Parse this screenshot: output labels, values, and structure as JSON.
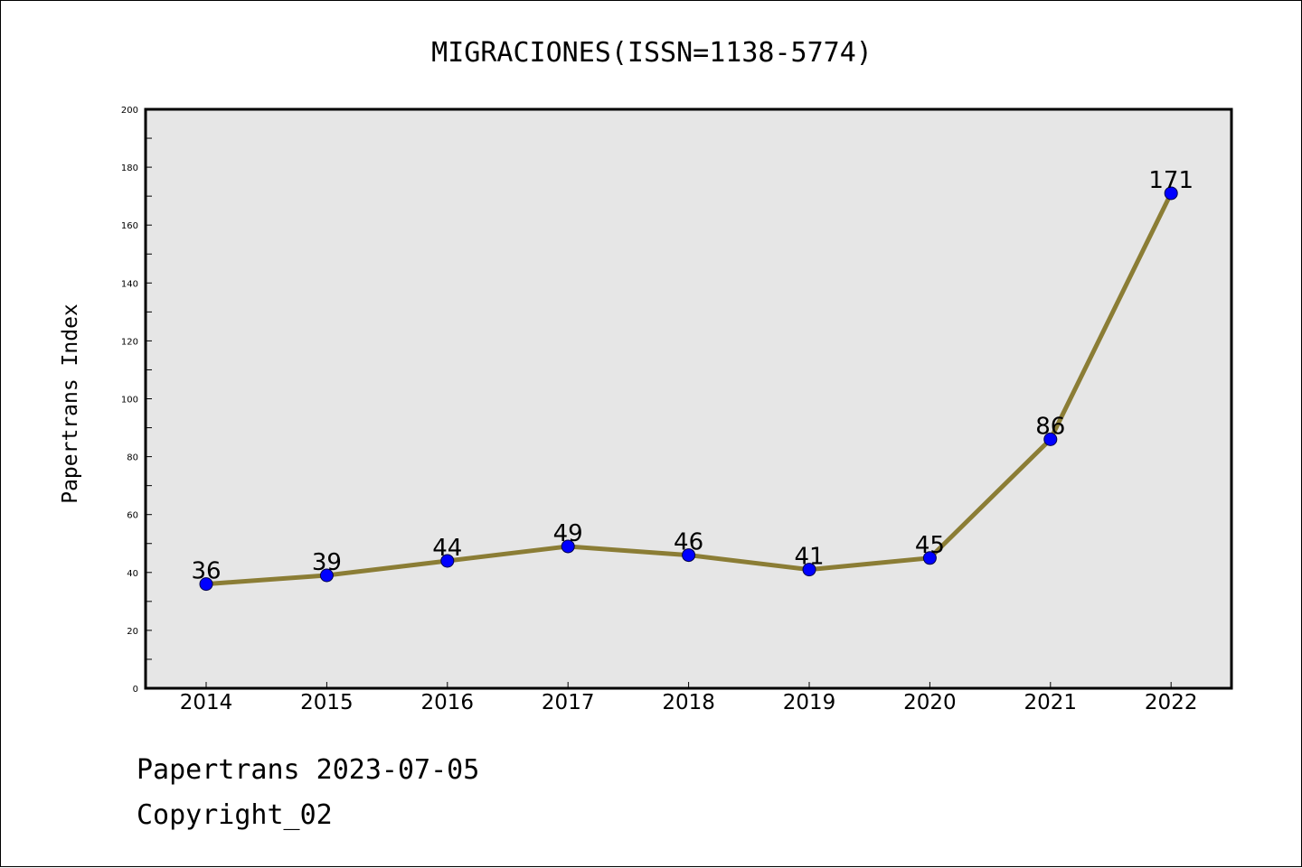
{
  "chart_data": {
    "type": "line",
    "title": "MIGRACIONES(ISSN=1138-5774)",
    "xlabel": "",
    "ylabel": "Papertrans Index",
    "x": [
      "2014",
      "2015",
      "2016",
      "2017",
      "2018",
      "2019",
      "2020",
      "2021",
      "2022"
    ],
    "series": [
      {
        "values": [
          36,
          39,
          44,
          49,
          46,
          41,
          45,
          86,
          171
        ]
      }
    ],
    "ylim": [
      0,
      200
    ],
    "yticks": [
      0,
      20,
      40,
      60,
      80,
      100,
      120,
      140,
      160,
      180,
      200
    ],
    "grid": false,
    "line_color": "#8b7d35",
    "marker_color": "#0000ff",
    "plot_background": "#e6e6e6"
  },
  "footer": {
    "date_line": "Papertrans 2023-07-05",
    "copyright_line": "Copyright_02"
  }
}
